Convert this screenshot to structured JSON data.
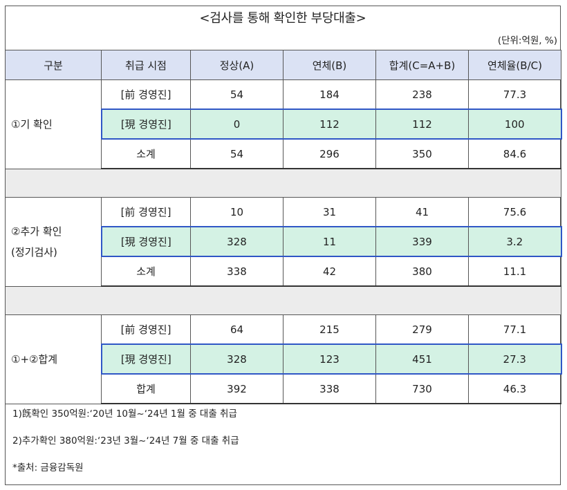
{
  "title": "<검사를 통해 확인한 부당대출>",
  "unit": "(단위:억원, %)",
  "headers": [
    "구분",
    "취급 시점",
    "정상(A)",
    "연체(B)",
    "합계(C=A+B)",
    "연체율(B/C)"
  ],
  "groups": [
    {
      "label": [
        "①기 확인"
      ],
      "rows": [
        {
          "period": "[前 경영진]",
          "values": [
            "54",
            "184",
            "238",
            "77.3"
          ]
        },
        {
          "period": "[現 경영진]",
          "values": [
            "0",
            "112",
            "112",
            "100"
          ]
        },
        {
          "period": "소계",
          "values": [
            "54",
            "296",
            "350",
            "84.6"
          ]
        }
      ]
    },
    {
      "label": [
        "②추가 확인",
        "(정기검사)"
      ],
      "rows": [
        {
          "period": "[前 경영진]",
          "values": [
            "10",
            "31",
            "41",
            "75.6"
          ]
        },
        {
          "period": "[現 경영진]",
          "values": [
            "328",
            "11",
            "339",
            "3.2"
          ]
        },
        {
          "period": "소계",
          "values": [
            "338",
            "42",
            "380",
            "11.1"
          ]
        }
      ]
    },
    {
      "label": [
        "①+②합계"
      ],
      "rows": [
        {
          "period": "[前 경영진]",
          "values": [
            "64",
            "215",
            "279",
            "77.1"
          ]
        },
        {
          "period": "[現 경영진]",
          "values": [
            "328",
            "123",
            "451",
            "27.3"
          ]
        },
        {
          "period": "합계",
          "values": [
            "392",
            "338",
            "730",
            "46.3"
          ]
        }
      ]
    }
  ],
  "notes": [
    "1)旣확인 350억원:‘20년 10월~‘24년 1월 중 대출 취급",
    "2)추가확인 380억원:‘23년 3월~‘24년 7월 중 대출 취급",
    "*출처: 금융감독원"
  ],
  "colors": {
    "header_bg": "#dbe2f4",
    "highlight_bg": "#d4f2e4",
    "highlight_border": "#2f56c6",
    "spacer_bg": "#ececec"
  }
}
